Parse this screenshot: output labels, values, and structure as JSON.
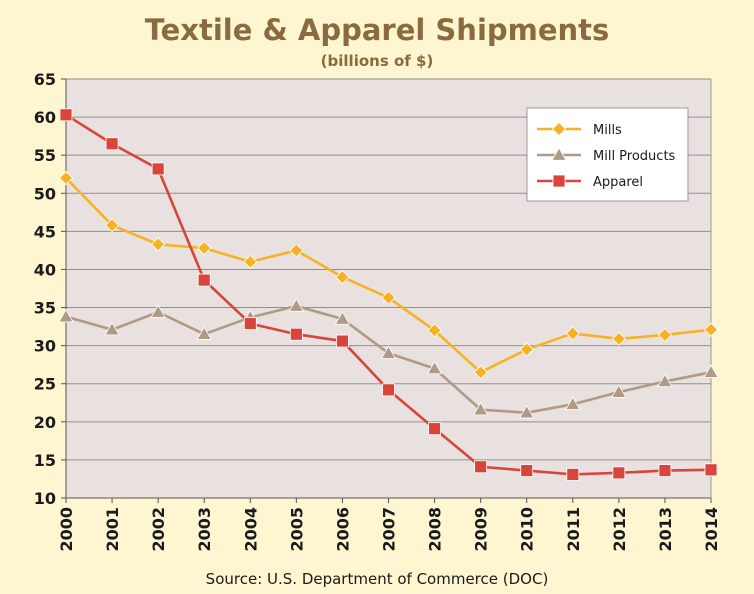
{
  "colors": {
    "background": "#fdf6d0",
    "plot_background": "#e9e1e0",
    "title": "#8a6a3e",
    "mills": "#f5b324",
    "mill_products": "#b09a85",
    "apparel": "#d9453a",
    "grid": "#8f8f8f",
    "axis_text": "#1a1a1a"
  },
  "chart_data": {
    "type": "line",
    "title": "Textile & Apparel Shipments",
    "subtitle": "(billions of $)",
    "source": "Source: U.S. Department of Commerce (DOC)",
    "xlabel": "",
    "ylabel": "",
    "ylim": [
      10,
      65
    ],
    "yticks": [
      10,
      15,
      20,
      25,
      30,
      35,
      40,
      45,
      50,
      55,
      60,
      65
    ],
    "grid": true,
    "legend_position": "top-right",
    "categories": [
      "2000",
      "2001",
      "2002",
      "2003",
      "2004",
      "2005",
      "2006",
      "2007",
      "2008",
      "2009",
      "2010",
      "2011",
      "2012",
      "2013",
      "2014"
    ],
    "series": [
      {
        "name": "Mills",
        "marker": "diamond",
        "color_key": "mills",
        "values": [
          52.0,
          45.8,
          43.3,
          42.8,
          41.0,
          42.5,
          39.0,
          36.3,
          32.0,
          26.5,
          29.5,
          31.6,
          30.9,
          31.4,
          32.1
        ]
      },
      {
        "name": "Mill Products",
        "marker": "triangle",
        "color_key": "mill_products",
        "values": [
          33.8,
          32.1,
          34.4,
          31.5,
          33.7,
          35.2,
          33.5,
          29.0,
          27.0,
          21.6,
          21.2,
          22.3,
          23.9,
          25.3,
          26.5
        ]
      },
      {
        "name": "Apparel",
        "marker": "square",
        "color_key": "apparel",
        "values": [
          60.3,
          56.5,
          53.2,
          38.6,
          32.9,
          31.5,
          30.6,
          24.2,
          19.1,
          14.1,
          13.6,
          13.1,
          13.3,
          13.6,
          13.7
        ]
      }
    ]
  }
}
